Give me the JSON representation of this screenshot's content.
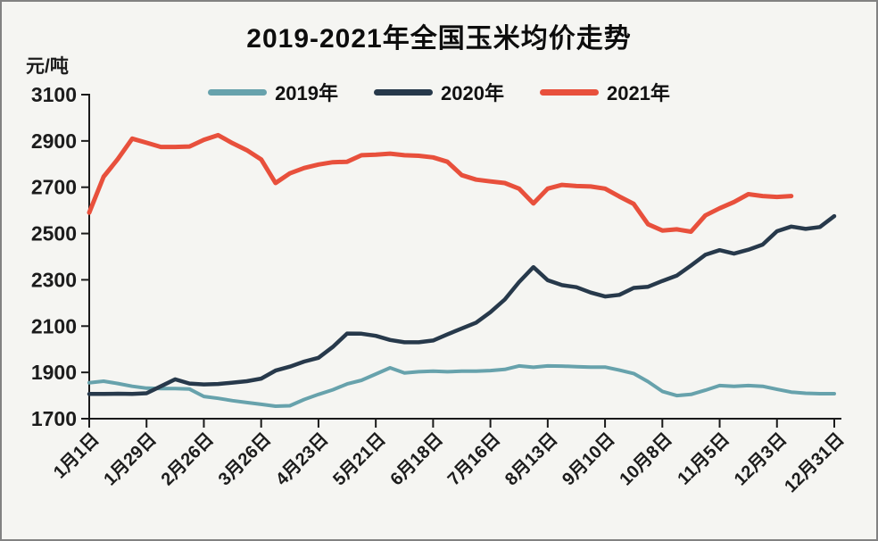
{
  "page": {
    "background": "#f5f5f2",
    "border_color": "#828282"
  },
  "chart_data": {
    "type": "line",
    "title": "2019-2021年全国玉米均价走势",
    "ylabel_unit": "元/吨",
    "legend_position": "top",
    "grid": false,
    "axis_color": "#1a1a1a",
    "ylim": [
      1700,
      3100
    ],
    "y_ticks": [
      3100,
      2900,
      2700,
      2500,
      2300,
      2100,
      1900,
      1700
    ],
    "xlim_days": [
      1,
      365
    ],
    "x_tick_days": [
      1,
      29,
      57,
      85,
      113,
      141,
      169,
      197,
      225,
      253,
      281,
      309,
      337,
      365
    ],
    "x_tick_labels": [
      "1月1日",
      "1月29日",
      "2月26日",
      "3月26日",
      "4月23日",
      "5月21日",
      "6月18日",
      "7月16日",
      "8月13日",
      "9月10日",
      "10月8日",
      "11月5日",
      "12月3日",
      "12月31日"
    ],
    "x_days": [
      1,
      8,
      15,
      22,
      29,
      36,
      43,
      50,
      57,
      64,
      71,
      78,
      85,
      92,
      99,
      106,
      113,
      120,
      127,
      134,
      141,
      148,
      155,
      162,
      169,
      176,
      183,
      190,
      197,
      204,
      211,
      218,
      225,
      232,
      239,
      246,
      253,
      260,
      267,
      274,
      281,
      288,
      295,
      302,
      309,
      316,
      323,
      330,
      337,
      344,
      351,
      358,
      365
    ],
    "series": [
      {
        "name": "2019年",
        "color": "#67A2AC",
        "stroke_width": 4,
        "values": [
          1855,
          1862,
          1852,
          1840,
          1832,
          1830,
          1830,
          1828,
          1796,
          1788,
          1778,
          1770,
          1762,
          1754,
          1756,
          1783,
          1805,
          1825,
          1850,
          1866,
          1893,
          1920,
          1898,
          1903,
          1905,
          1903,
          1905,
          1905,
          1908,
          1913,
          1928,
          1922,
          1928,
          1927,
          1925,
          1923,
          1923,
          1910,
          1895,
          1860,
          1818,
          1800,
          1805,
          1823,
          1843,
          1840,
          1843,
          1840,
          1827,
          1815,
          1810,
          1808,
          1808
        ]
      },
      {
        "name": "2020年",
        "color": "#27394B",
        "stroke_width": 4.5,
        "values": [
          1807,
          1807,
          1808,
          1807,
          1810,
          1840,
          1870,
          1852,
          1848,
          1850,
          1856,
          1862,
          1873,
          1908,
          1925,
          1947,
          1963,
          2010,
          2068,
          2067,
          2058,
          2040,
          2030,
          2030,
          2038,
          2064,
          2090,
          2115,
          2160,
          2215,
          2290,
          2355,
          2298,
          2277,
          2268,
          2245,
          2228,
          2235,
          2265,
          2270,
          2295,
          2318,
          2362,
          2408,
          2428,
          2413,
          2430,
          2452,
          2510,
          2530,
          2520,
          2528,
          2575
        ]
      },
      {
        "name": "2021年",
        "color": "#E8503C",
        "stroke_width": 5,
        "values": [
          2590,
          2745,
          2822,
          2910,
          2892,
          2874,
          2874,
          2876,
          2905,
          2925,
          2890,
          2860,
          2820,
          2718,
          2760,
          2783,
          2798,
          2808,
          2810,
          2838,
          2841,
          2845,
          2838,
          2836,
          2829,
          2810,
          2752,
          2733,
          2725,
          2718,
          2694,
          2630,
          2694,
          2710,
          2705,
          2703,
          2694,
          2660,
          2628,
          2540,
          2513,
          2518,
          2508,
          2578,
          2609,
          2636,
          2670,
          2662,
          2658,
          2662,
          null,
          null,
          null
        ]
      }
    ]
  }
}
